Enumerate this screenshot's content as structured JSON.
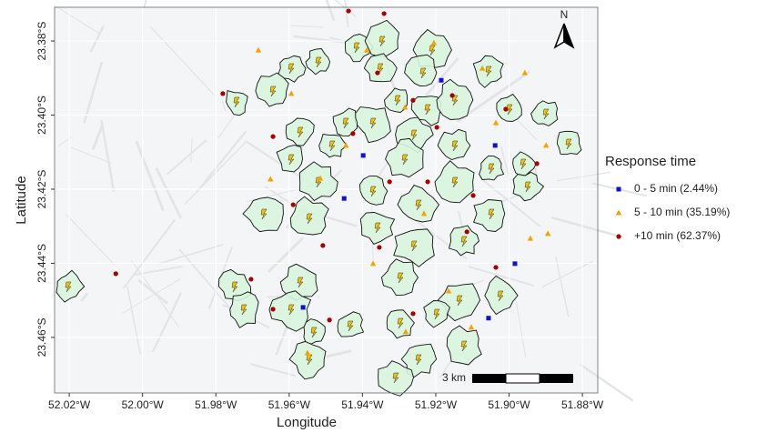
{
  "chart_data": {
    "type": "scatter",
    "x_label": "Longitude",
    "y_label": "Latitude",
    "xlim": [
      -52.024,
      -51.8758
    ],
    "ylim": [
      -23.475,
      -23.3709
    ],
    "xticks": [
      {
        "value": -52.02,
        "label": "52.02°W"
      },
      {
        "value": -52.0,
        "label": "52.00°W"
      },
      {
        "value": -51.98,
        "label": "51.98°W"
      },
      {
        "value": -51.96,
        "label": "51.96°W"
      },
      {
        "value": -51.94,
        "label": "51.94°W"
      },
      {
        "value": -51.92,
        "label": "51.92°W"
      },
      {
        "value": -51.9,
        "label": "51.90°W"
      },
      {
        "value": -51.88,
        "label": "51.88°W"
      }
    ],
    "yticks": [
      {
        "value": -23.38,
        "label": "23.38°S"
      },
      {
        "value": -23.4,
        "label": "23.40°S"
      },
      {
        "value": -23.42,
        "label": "23.42°S"
      },
      {
        "value": -23.44,
        "label": "23.44°S"
      },
      {
        "value": -23.46,
        "label": "23.46°S"
      }
    ],
    "grid": true,
    "legend_title": "Response time",
    "scale_bar": "3 km",
    "north_label": "N",
    "series": [
      {
        "name": "0 - 5 min (2.44%)",
        "color": "#1010d0",
        "marker": "square",
        "x": [
          -51.9185,
          -51.9038,
          -51.9398,
          -51.945,
          -51.9562,
          -51.9056,
          -51.8984
        ],
        "y": [
          -23.3906,
          -23.4082,
          -23.4109,
          -23.4225,
          -23.4519,
          -23.4548,
          -23.4401
        ]
      },
      {
        "name": "5 - 10 min (35.19%)",
        "color": "#f5a300",
        "marker": "triangle",
        "x": [
          -51.9684,
          -51.9594,
          -51.9388,
          -51.9205,
          -51.8957,
          -51.9445,
          -51.9036,
          -51.8899,
          -51.8894,
          -51.8942,
          -51.9073,
          -51.9284,
          -51.9515,
          -51.9371,
          -51.9282,
          -51.9165,
          -51.9103,
          -51.955,
          -51.9651,
          -51.9232
        ],
        "y": [
          -23.3825,
          -23.3942,
          -23.3825,
          -23.3805,
          -23.3886,
          -23.4082,
          -23.4021,
          -23.4082,
          -23.432,
          -23.4333,
          -23.3874,
          -23.3979,
          -23.4171,
          -23.4401,
          -23.4585,
          -23.4475,
          -23.4573,
          -23.4642,
          -23.4173,
          -23.4266
        ]
      },
      {
        "name": "+10 min (62.37%)",
        "color": "#a80000",
        "marker": "circle",
        "x": [
          -51.9438,
          -51.9341,
          -52.0073,
          -51.9781,
          -51.9644,
          -51.9426,
          -51.9262,
          -51.9155,
          -51.9009,
          -51.9115,
          -51.9036,
          -51.9589,
          -51.9508,
          -51.9326,
          -51.9222,
          -51.9704,
          -51.949,
          -51.9262,
          -51.9354,
          -51.9098,
          -51.8924,
          -51.9644,
          -51.9197,
          -51.9359
        ],
        "y": [
          -23.3719,
          -23.3726,
          -23.4428,
          -23.3942,
          -23.4058,
          -23.405,
          -23.396,
          -23.3947,
          -23.3984,
          -23.4315,
          -23.4411,
          -23.4242,
          -23.4352,
          -23.418,
          -23.418,
          -23.4443,
          -23.4553,
          -23.4536,
          -23.4357,
          -23.4217,
          -23.4131,
          -23.4524,
          -23.4033,
          -23.3886
        ]
      }
    ]
  }
}
